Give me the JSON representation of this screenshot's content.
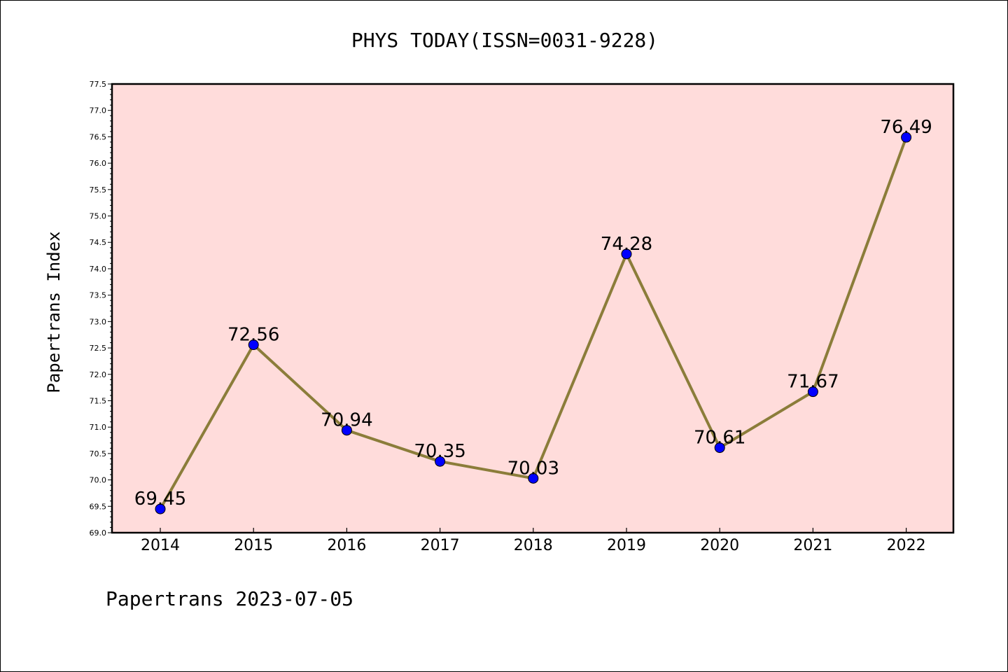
{
  "chart_data": {
    "type": "line",
    "title": "PHYS TODAY(ISSN=0031-9228)",
    "xlabel": "",
    "ylabel": "Papertrans Index",
    "footer": "Papertrans 2023-07-05",
    "x": [
      "2014",
      "2015",
      "2016",
      "2017",
      "2018",
      "2019",
      "2020",
      "2021",
      "2022"
    ],
    "series": [
      {
        "values": [
          69.45,
          72.56,
          70.94,
          70.35,
          70.03,
          74.28,
          70.61,
          71.67,
          76.49
        ],
        "labels": [
          "69.45",
          "72.56",
          "70.94",
          "70.35",
          "70.03",
          "74.28",
          "70.61",
          "71.67",
          "76.49"
        ],
        "line_color": "#8b7d3a",
        "marker_color": "#0000ff"
      }
    ],
    "ylim": [
      69.0,
      77.5
    ],
    "yticks": [
      "69.0",
      "69.5",
      "70.0",
      "70.5",
      "71.0",
      "71.5",
      "72.0",
      "72.5",
      "73.0",
      "73.5",
      "74.0",
      "74.5",
      "75.0",
      "75.5",
      "76.0",
      "76.5",
      "77.0",
      "77.5"
    ],
    "plot_background": "#ffdcdb",
    "grid": false
  }
}
